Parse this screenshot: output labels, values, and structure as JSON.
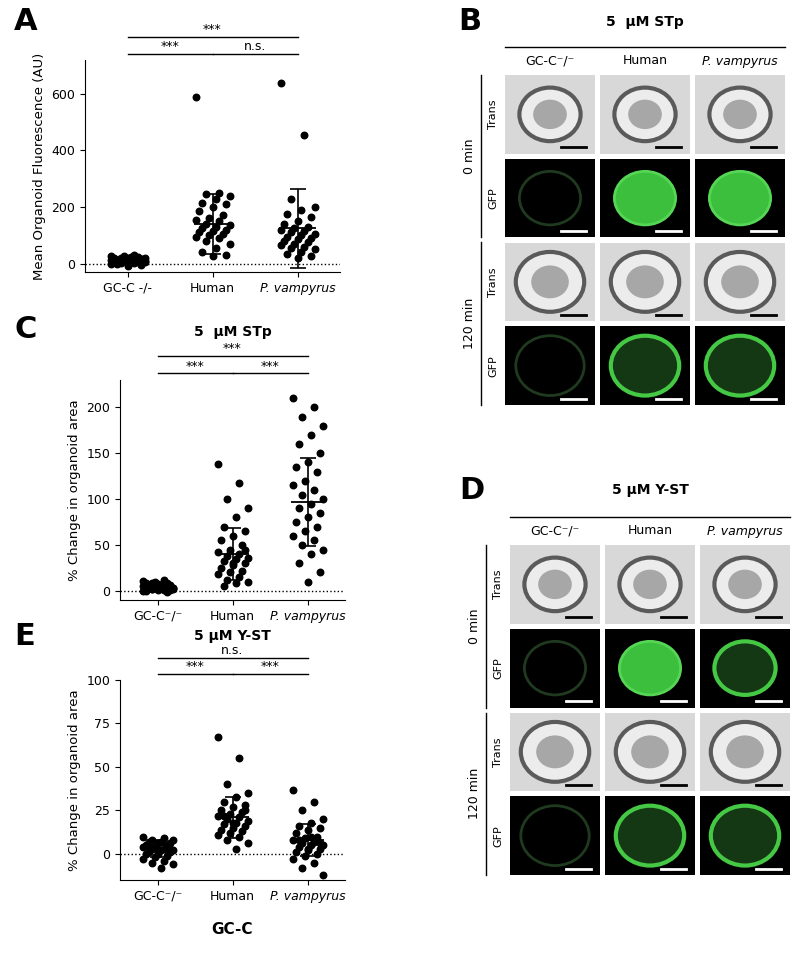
{
  "chart_data": [
    {
      "type": "scatter",
      "panel_label": "A",
      "y_label": "Mean Organoid Fluorescence (AU)",
      "categories": [
        "GC-C -/-",
        "Human",
        "P. vampyrus"
      ],
      "values": [
        [
          0,
          2,
          5,
          8,
          10,
          12,
          15,
          18,
          20,
          22,
          25,
          28,
          30,
          3,
          6,
          9,
          14,
          17,
          1,
          4,
          7,
          11,
          13,
          16,
          19,
          21,
          24,
          -3,
          -5,
          -8
        ],
        [
          590,
          250,
          245,
          240,
          230,
          215,
          210,
          200,
          185,
          170,
          160,
          155,
          150,
          140,
          135,
          130,
          125,
          120,
          115,
          110,
          105,
          100,
          95,
          90,
          80,
          70,
          55,
          40,
          30,
          25
        ],
        [
          640,
          455,
          230,
          200,
          190,
          175,
          165,
          150,
          140,
          130,
          125,
          120,
          115,
          110,
          105,
          100,
          95,
          90,
          85,
          80,
          75,
          70,
          65,
          60,
          55,
          50,
          40,
          35,
          25,
          20
        ]
      ],
      "means": [
        10,
        140,
        125
      ],
      "sds": [
        10,
        105,
        140
      ],
      "color": "#000000",
      "baseline": 0,
      "ylim": [
        -30,
        720
      ],
      "yticks": [
        0,
        200,
        400,
        600
      ],
      "comparisons": [
        {
          "pair": [
            0,
            2
          ],
          "label": "***"
        },
        {
          "pair": [
            0,
            1
          ],
          "label": "***"
        },
        {
          "pair": [
            1,
            2
          ],
          "label": "n.s."
        }
      ]
    },
    {
      "type": "scatter",
      "panel_label": "C",
      "title": "5  µM STp",
      "y_label": "% Change in organoid area",
      "categories": [
        "GC-C⁻/⁻",
        "Human",
        "P. vampyrus"
      ],
      "values": [
        [
          0,
          1,
          2,
          3,
          4,
          5,
          6,
          7,
          8,
          9,
          10,
          11,
          12,
          2,
          3,
          5,
          6,
          4,
          1,
          0,
          -1,
          3,
          5,
          7,
          8,
          2,
          4,
          6,
          1,
          3
        ],
        [
          138,
          118,
          100,
          90,
          80,
          70,
          65,
          60,
          55,
          50,
          45,
          42,
          40,
          38,
          36,
          35,
          33,
          30,
          28,
          25,
          22,
          20,
          18,
          15,
          12,
          10,
          8,
          5,
          45,
          30
        ],
        [
          210,
          200,
          190,
          180,
          170,
          160,
          150,
          140,
          135,
          130,
          120,
          115,
          110,
          105,
          100,
          95,
          90,
          85,
          80,
          75,
          70,
          65,
          60,
          55,
          50,
          45,
          40,
          30,
          20,
          10
        ]
      ],
      "means": [
        4,
        40,
        97
      ],
      "sds": [
        3,
        28,
        48
      ],
      "color": "#000000",
      "baseline": 0,
      "ylim": [
        -10,
        230
      ],
      "yticks": [
        0,
        50,
        100,
        150,
        200
      ],
      "comparisons": [
        {
          "pair": [
            0,
            2
          ],
          "label": "***"
        },
        {
          "pair": [
            0,
            1
          ],
          "label": "***"
        },
        {
          "pair": [
            1,
            2
          ],
          "label": "***"
        }
      ]
    },
    {
      "type": "scatter",
      "panel_label": "E",
      "title": "5 µM Y-ST",
      "y_label": "% Change in organoid area",
      "x_label": "GC-C",
      "categories": [
        "GC-C⁻/⁻",
        "Human",
        "P. vampyrus"
      ],
      "values": [
        [
          10,
          9,
          8,
          8,
          7,
          7,
          6,
          6,
          5,
          5,
          4,
          4,
          3,
          3,
          2,
          2,
          1,
          1,
          0,
          0,
          -1,
          -2,
          -3,
          -4,
          -5,
          -6,
          -8,
          5,
          3,
          2
        ],
        [
          67,
          55,
          40,
          35,
          33,
          30,
          28,
          27,
          25,
          24,
          23,
          22,
          21,
          20,
          19,
          18,
          17,
          16,
          15,
          14,
          13,
          12,
          11,
          10,
          8,
          6,
          3,
          22,
          25,
          18
        ],
        [
          37,
          30,
          25,
          20,
          18,
          16,
          15,
          14,
          12,
          10,
          9,
          8,
          7,
          6,
          5,
          5,
          4,
          3,
          2,
          1,
          0,
          -1,
          -3,
          -5,
          -8,
          -12,
          10,
          8,
          6,
          3
        ]
      ],
      "means": [
        3,
        21,
        8
      ],
      "sds": [
        5,
        12,
        9
      ],
      "color": "#000000",
      "baseline": 0,
      "ylim": [
        -15,
        100
      ],
      "yticks": [
        0,
        25,
        50,
        75,
        100
      ],
      "comparisons": [
        {
          "pair": [
            0,
            2
          ],
          "label": "n.s."
        },
        {
          "pair": [
            0,
            1
          ],
          "label": "***"
        },
        {
          "pair": [
            1,
            2
          ],
          "label": "***"
        }
      ]
    }
  ],
  "image_panels": [
    {
      "panel_label": "B",
      "title": "5  µM STp",
      "columns": [
        "GC-C⁻/⁻",
        "Human",
        "P. vampyrus"
      ],
      "time_points": [
        "0 min",
        "120 min"
      ],
      "channels": [
        "Trans",
        "GFP"
      ]
    },
    {
      "panel_label": "D",
      "title": "5 µM Y-ST",
      "columns": [
        "GC-C⁻/⁻",
        "Human",
        "P. vampyrus"
      ],
      "time_points": [
        "0 min",
        "120 min"
      ],
      "channels": [
        "Trans",
        "GFP"
      ]
    }
  ]
}
